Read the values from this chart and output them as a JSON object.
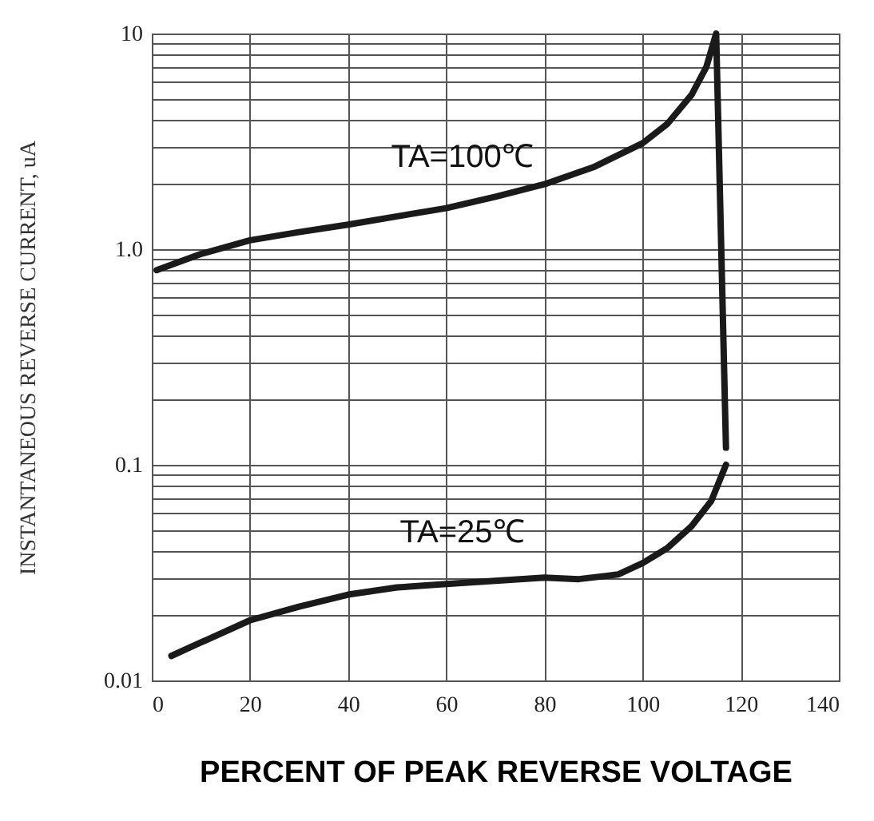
{
  "chart_data": {
    "type": "line",
    "xlabel": "PERCENT OF  PEAK REVERSE VOLTAGE",
    "ylabel": "INSTANTANEOUS    REVERSE    CURRENT,    uA",
    "series": [
      {
        "name": "TA=100℃",
        "color": "#1a1a1a",
        "x": [
          1,
          10,
          20,
          30,
          40,
          50,
          60,
          70,
          80,
          90,
          100,
          105,
          110,
          113,
          115,
          117
        ],
        "values": [
          0.8,
          0.95,
          1.1,
          1.2,
          1.3,
          1.42,
          1.55,
          1.75,
          2,
          2.4,
          3.1,
          3.8,
          5.2,
          7,
          10,
          0.12
        ]
      },
      {
        "name": "TA=25℃",
        "color": "#1a1a1a",
        "x": [
          4,
          10,
          20,
          30,
          40,
          50,
          60,
          70,
          80,
          87,
          95,
          100,
          105,
          110,
          114,
          117
        ],
        "values": [
          0.013,
          0.015,
          0.019,
          0.022,
          0.025,
          0.027,
          0.028,
          0.029,
          0.03,
          0.0295,
          0.031,
          0.035,
          0.041,
          0.052,
          0.068,
          0.1
        ]
      }
    ],
    "xlim": [
      0,
      140
    ],
    "xticks": [
      0,
      20,
      40,
      60,
      80,
      100,
      120,
      140
    ],
    "ylim": [
      0.01,
      10
    ],
    "log": "y",
    "yticks": [
      0.01,
      {
        "value": 0.02,
        "label": null
      },
      {
        "value": 0.03,
        "label": null
      },
      {
        "value": 0.04,
        "label": null
      },
      {
        "value": 0.05,
        "label": null
      },
      {
        "value": 0.06,
        "label": null
      },
      {
        "value": 0.07,
        "label": null
      },
      {
        "value": 0.08,
        "label": null
      },
      {
        "value": 0.09,
        "label": null
      },
      0.1,
      {
        "value": 0.2,
        "label": null
      },
      {
        "value": 0.3,
        "label": null
      },
      {
        "value": 0.4,
        "label": null
      },
      {
        "value": 0.5,
        "label": null
      },
      {
        "value": 0.6,
        "label": null
      },
      {
        "value": 0.7,
        "label": null
      },
      {
        "value": 0.8,
        "label": null
      },
      {
        "value": 0.9,
        "label": null
      },
      {
        "value": 1,
        "label": "1.0"
      },
      {
        "value": 2,
        "label": null
      },
      {
        "value": 3,
        "label": null
      },
      {
        "value": 4,
        "label": null
      },
      {
        "value": 5,
        "label": null
      },
      {
        "value": 6,
        "label": null
      },
      {
        "value": 7,
        "label": null
      },
      {
        "value": 8,
        "label": null
      },
      {
        "value": 9,
        "label": null
      },
      10
    ],
    "grid": true,
    "line_style": "solid",
    "marker": "none"
  }
}
